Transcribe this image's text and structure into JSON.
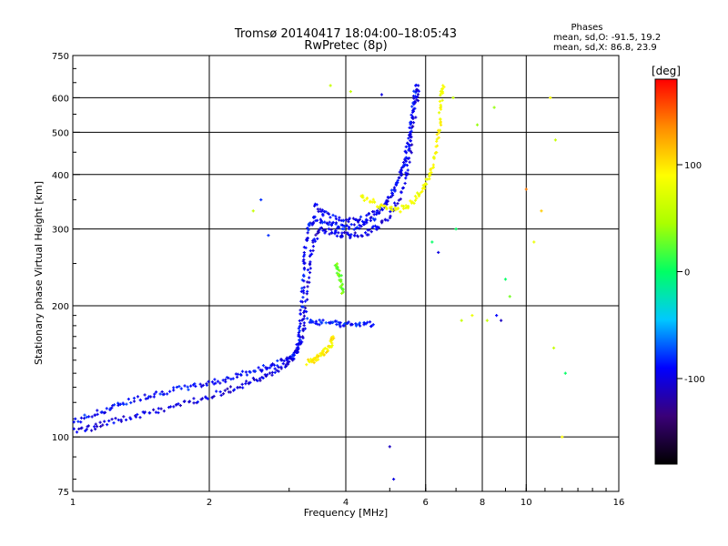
{
  "chart_data": {
    "type": "scatter",
    "title": "Tromsø 20140417 18:04:00–18:05:43",
    "subtitle": "RwPretec (8p)",
    "xlabel": "Frequency [MHz]",
    "ylabel": "Stationary phase Virtual Height [km]",
    "x_scale": "log",
    "y_scale": "log",
    "xlim": [
      1,
      16
    ],
    "ylim": [
      75,
      750
    ],
    "x_ticks": [
      1,
      2,
      4,
      6,
      8,
      10,
      16
    ],
    "y_ticks": [
      75,
      100,
      200,
      300,
      400,
      500,
      600,
      750
    ],
    "x_gridlines": [
      2,
      4,
      6,
      8,
      10
    ],
    "y_gridlines": [
      100,
      200,
      300,
      400,
      500,
      600
    ],
    "grid": true,
    "stats": {
      "heading": "Phases",
      "line_o": "mean, sd,O: -91.5, 19.2",
      "line_x": "mean, sd,X:  86.8, 23.9"
    },
    "colorbar": {
      "label": "[deg]",
      "min": -180,
      "max": 180,
      "ticks": [
        100,
        0,
        -100
      ],
      "colormap": [
        "#000000",
        "#3a0078",
        "#0000ff",
        "#00c8ff",
        "#00ff64",
        "#aaff00",
        "#ffff00",
        "#ff8c00",
        "#ff0000"
      ]
    },
    "series": [
      {
        "color_hint": "blue (phase ≈ -100)",
        "traces": [
          {
            "points": [
              [
                1.0,
                108
              ],
              [
                1.1,
                112
              ],
              [
                1.2,
                116
              ],
              [
                1.3,
                120
              ],
              [
                1.45,
                124
              ],
              [
                1.6,
                127
              ],
              [
                1.8,
                130
              ],
              [
                2.0,
                133
              ],
              [
                2.2,
                136
              ],
              [
                2.4,
                140
              ],
              [
                2.6,
                143
              ],
              [
                2.8,
                147
              ],
              [
                3.0,
                152
              ],
              [
                3.1,
                156
              ],
              [
                3.15,
                163
              ],
              [
                3.18,
                178
              ],
              [
                3.2,
                200
              ],
              [
                3.22,
                230
              ],
              [
                3.25,
                265
              ],
              [
                3.3,
                300
              ],
              [
                3.4,
                318
              ],
              [
                3.6,
                312
              ],
              [
                3.8,
                306
              ],
              [
                4.0,
                302
              ],
              [
                4.3,
                305
              ],
              [
                4.6,
                318
              ],
              [
                4.9,
                340
              ],
              [
                5.2,
                380
              ],
              [
                5.4,
                430
              ],
              [
                5.55,
                500
              ],
              [
                5.65,
                580
              ],
              [
                5.7,
                640
              ]
            ],
            "phase": -90
          },
          {
            "points": [
              [
                1.0,
                103
              ],
              [
                1.1,
                105
              ],
              [
                1.2,
                108
              ],
              [
                1.35,
                111
              ],
              [
                1.5,
                114
              ],
              [
                1.7,
                118
              ],
              [
                1.9,
                122
              ],
              [
                2.1,
                126
              ],
              [
                2.3,
                130
              ],
              [
                2.5,
                134
              ],
              [
                2.7,
                139
              ],
              [
                2.9,
                145
              ],
              [
                3.05,
                150
              ],
              [
                3.15,
                160
              ],
              [
                3.22,
                175
              ],
              [
                3.27,
                200
              ],
              [
                3.32,
                240
              ],
              [
                3.38,
                275
              ],
              [
                3.5,
                300
              ],
              [
                3.7,
                296
              ],
              [
                3.9,
                291
              ],
              [
                4.1,
                290
              ],
              [
                4.4,
                293
              ],
              [
                4.7,
                303
              ],
              [
                5.0,
                322
              ],
              [
                5.3,
                360
              ],
              [
                5.5,
                420
              ],
              [
                5.62,
                500
              ],
              [
                5.72,
                590
              ],
              [
                5.78,
                640
              ]
            ],
            "phase": -100
          },
          {
            "points": [
              [
                3.4,
                340
              ],
              [
                3.6,
                325
              ],
              [
                3.9,
                315
              ],
              [
                4.2,
                312
              ],
              [
                4.5,
                320
              ],
              [
                4.8,
                335
              ],
              [
                5.1,
                365
              ],
              [
                5.35,
                410
              ],
              [
                5.5,
                470
              ],
              [
                5.6,
                540
              ]
            ],
            "phase": -95
          },
          {
            "points": [
              [
                3.3,
                185
              ],
              [
                3.5,
                183
              ],
              [
                3.8,
                182
              ],
              [
                4.0,
                181
              ],
              [
                4.3,
                181
              ],
              [
                4.6,
                181
              ]
            ],
            "phase": -85
          }
        ]
      },
      {
        "color_hint": "yellow/green (phase ≈ +90)",
        "traces": [
          {
            "points": [
              [
                3.3,
                148
              ],
              [
                3.4,
                150
              ],
              [
                3.5,
                153
              ],
              [
                3.6,
                157
              ],
              [
                3.7,
                162
              ],
              [
                3.75,
                170
              ]
            ],
            "phase": 95
          },
          {
            "points": [
              [
                4.3,
                360
              ],
              [
                4.6,
                345
              ],
              [
                4.9,
                335
              ],
              [
                5.2,
                330
              ],
              [
                5.5,
                340
              ],
              [
                5.8,
                360
              ],
              [
                6.0,
                380
              ],
              [
                6.2,
                410
              ],
              [
                6.35,
                460
              ],
              [
                6.45,
                520
              ],
              [
                6.5,
                600
              ],
              [
                6.55,
                640
              ]
            ],
            "phase": 85
          },
          {
            "points": [
              [
                3.8,
                250
              ],
              [
                3.85,
                240
              ],
              [
                3.9,
                228
              ],
              [
                3.95,
                215
              ]
            ],
            "phase": 30
          }
        ]
      }
    ],
    "scatter_outliers": [
      [
        3.7,
        640,
        60
      ],
      [
        4.1,
        620,
        60
      ],
      [
        4.8,
        610,
        -100
      ],
      [
        5.0,
        95,
        -110
      ],
      [
        5.1,
        80,
        -100
      ],
      [
        6.2,
        280,
        0
      ],
      [
        6.4,
        265,
        -100
      ],
      [
        7.0,
        300,
        0
      ],
      [
        7.2,
        185,
        60
      ],
      [
        7.6,
        190,
        80
      ],
      [
        8.2,
        185,
        60
      ],
      [
        8.6,
        190,
        -90
      ],
      [
        8.8,
        185,
        -110
      ],
      [
        9.0,
        230,
        0
      ],
      [
        9.2,
        210,
        30
      ],
      [
        10.0,
        370,
        140
      ],
      [
        10.4,
        280,
        80
      ],
      [
        10.8,
        330,
        110
      ],
      [
        11.3,
        600,
        90
      ],
      [
        11.5,
        160,
        60
      ],
      [
        11.6,
        480,
        60
      ],
      [
        12.0,
        100,
        90
      ],
      [
        12.2,
        140,
        0
      ],
      [
        7.8,
        520,
        40
      ],
      [
        8.5,
        570,
        40
      ],
      [
        6.9,
        600,
        60
      ],
      [
        2.5,
        330,
        60
      ],
      [
        2.6,
        350,
        -80
      ],
      [
        2.7,
        290,
        -80
      ]
    ]
  }
}
